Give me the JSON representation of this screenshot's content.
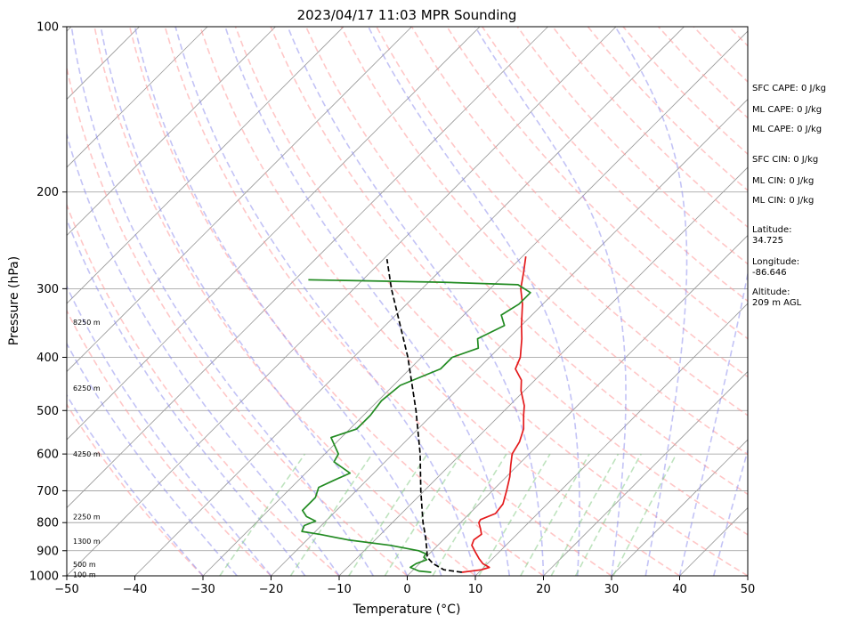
{
  "chart_data": {
    "type": "line",
    "title": "2023/04/17 11:03 MPR Sounding",
    "xlabel": "Temperature (°C)",
    "ylabel": "Pressure (hPa)",
    "xlim": [
      -50,
      50
    ],
    "ylim": [
      1000,
      100
    ],
    "y_scale": "log",
    "grid": true,
    "x_ticks": [
      "−50",
      "−40",
      "−30",
      "−20",
      "−10",
      "0",
      "10",
      "20",
      "30",
      "40",
      "50"
    ],
    "x_tick_values": [
      -50,
      -40,
      -30,
      -20,
      -10,
      0,
      10,
      20,
      30,
      40,
      50
    ],
    "y_ticks": [
      "100",
      "200",
      "300",
      "400",
      "500",
      "600",
      "700",
      "800",
      "900",
      "1000"
    ],
    "y_tick_values": [
      100,
      200,
      300,
      400,
      500,
      600,
      700,
      800,
      900,
      1000
    ],
    "series": [
      {
        "key": "temperature",
        "color": "#e41a1c",
        "points": [
          {
            "p": 985,
            "t": 7.5
          },
          {
            "p": 975,
            "t": 10.0
          },
          {
            "p": 965,
            "t": 10.8
          },
          {
            "p": 950,
            "t": 9.3
          },
          {
            "p": 930,
            "t": 8.0
          },
          {
            "p": 905,
            "t": 6.5
          },
          {
            "p": 880,
            "t": 5.0
          },
          {
            "p": 860,
            "t": 4.5
          },
          {
            "p": 840,
            "t": 4.8
          },
          {
            "p": 820,
            "t": 3.8
          },
          {
            "p": 800,
            "t": 2.7
          },
          {
            "p": 790,
            "t": 2.5
          },
          {
            "p": 770,
            "t": 3.8
          },
          {
            "p": 740,
            "t": 3.5
          },
          {
            "p": 700,
            "t": 2.1
          },
          {
            "p": 660,
            "t": 0.5
          },
          {
            "p": 630,
            "t": -1.0
          },
          {
            "p": 600,
            "t": -2.5
          },
          {
            "p": 570,
            "t": -3.2
          },
          {
            "p": 540,
            "t": -4.5
          },
          {
            "p": 510,
            "t": -6.5
          },
          {
            "p": 490,
            "t": -7.8
          },
          {
            "p": 460,
            "t": -10.5
          },
          {
            "p": 440,
            "t": -12.0
          },
          {
            "p": 420,
            "t": -14.5
          },
          {
            "p": 400,
            "t": -15.5
          },
          {
            "p": 370,
            "t": -18.0
          },
          {
            "p": 350,
            "t": -20.0
          },
          {
            "p": 320,
            "t": -23.0
          },
          {
            "p": 300,
            "t": -25.5
          },
          {
            "p": 280,
            "t": -27.5
          },
          {
            "p": 262,
            "t": -29.5
          }
        ]
      },
      {
        "key": "dewpoint",
        "color": "#228b22",
        "points": [
          {
            "p": 985,
            "t": 3.0
          },
          {
            "p": 980,
            "t": 1.0
          },
          {
            "p": 965,
            "t": -0.8
          },
          {
            "p": 950,
            "t": -0.5
          },
          {
            "p": 935,
            "t": 0.5
          },
          {
            "p": 925,
            "t": -0.3
          },
          {
            "p": 912,
            "t": -0.5
          },
          {
            "p": 900,
            "t": -2.0
          },
          {
            "p": 880,
            "t": -7.0
          },
          {
            "p": 860,
            "t": -14.0
          },
          {
            "p": 840,
            "t": -19.0
          },
          {
            "p": 830,
            "t": -22.0
          },
          {
            "p": 810,
            "t": -22.5
          },
          {
            "p": 795,
            "t": -21.5
          },
          {
            "p": 780,
            "t": -23.5
          },
          {
            "p": 760,
            "t": -25.0
          },
          {
            "p": 720,
            "t": -25.0
          },
          {
            "p": 690,
            "t": -26.0
          },
          {
            "p": 670,
            "t": -24.8
          },
          {
            "p": 650,
            "t": -23.5
          },
          {
            "p": 620,
            "t": -27.5
          },
          {
            "p": 600,
            "t": -28.0
          },
          {
            "p": 560,
            "t": -31.5
          },
          {
            "p": 540,
            "t": -29.0
          },
          {
            "p": 510,
            "t": -29.0
          },
          {
            "p": 480,
            "t": -29.5
          },
          {
            "p": 450,
            "t": -29.0
          },
          {
            "p": 420,
            "t": -25.5
          },
          {
            "p": 400,
            "t": -25.5
          },
          {
            "p": 385,
            "t": -23.0
          },
          {
            "p": 370,
            "t": -24.5
          },
          {
            "p": 350,
            "t": -22.5
          },
          {
            "p": 335,
            "t": -24.5
          },
          {
            "p": 320,
            "t": -23.5
          },
          {
            "p": 305,
            "t": -23.5
          },
          {
            "p": 295,
            "t": -26.5
          },
          {
            "p": 292,
            "t": -38.0
          },
          {
            "p": 289,
            "t": -58.0
          }
        ]
      },
      {
        "key": "parcel",
        "color": "#000000",
        "dashed": true,
        "points": [
          {
            "p": 985,
            "t": 7.5
          },
          {
            "p": 975,
            "t": 4.5
          },
          {
            "p": 950,
            "t": 2.0
          },
          {
            "p": 925,
            "t": 0.2
          },
          {
            "p": 900,
            "t": -0.8
          },
          {
            "p": 850,
            "t": -3.0
          },
          {
            "p": 800,
            "t": -5.5
          },
          {
            "p": 700,
            "t": -10.5
          },
          {
            "p": 600,
            "t": -16.0
          },
          {
            "p": 500,
            "t": -23.0
          },
          {
            "p": 400,
            "t": -32.0
          },
          {
            "p": 300,
            "t": -44.5
          },
          {
            "p": 265,
            "t": -49.5
          }
        ]
      }
    ],
    "height_labels": [
      {
        "text": "100 m",
        "p": 995
      },
      {
        "text": "500 m",
        "p": 952
      },
      {
        "text": "1300 m",
        "p": 865
      },
      {
        "text": "2250 m",
        "p": 780
      },
      {
        "text": "4250 m",
        "p": 600
      },
      {
        "text": "6250 m",
        "p": 455
      },
      {
        "text": "8250 m",
        "p": 345
      }
    ],
    "side_panel": [
      "SFC CAPE: 0 J/kg",
      "ML CAPE: 0 J/kg",
      "ML CAPE: 0 J/kg",
      "SFC CIN: 0 J/kg",
      "ML CIN: 0 J/kg",
      "ML CIN: 0 J/kg",
      "Latitude:",
      "34.725",
      "Longitude:",
      "-86.646",
      "Altitude:",
      "209 m AGL"
    ],
    "reference_lines": {
      "dry_adiabat_color": "#ff9999",
      "moist_adiabat_color": "#8888ee",
      "mixing_ratio_color": "#88cc88",
      "isotherm_color": "#999999"
    }
  }
}
